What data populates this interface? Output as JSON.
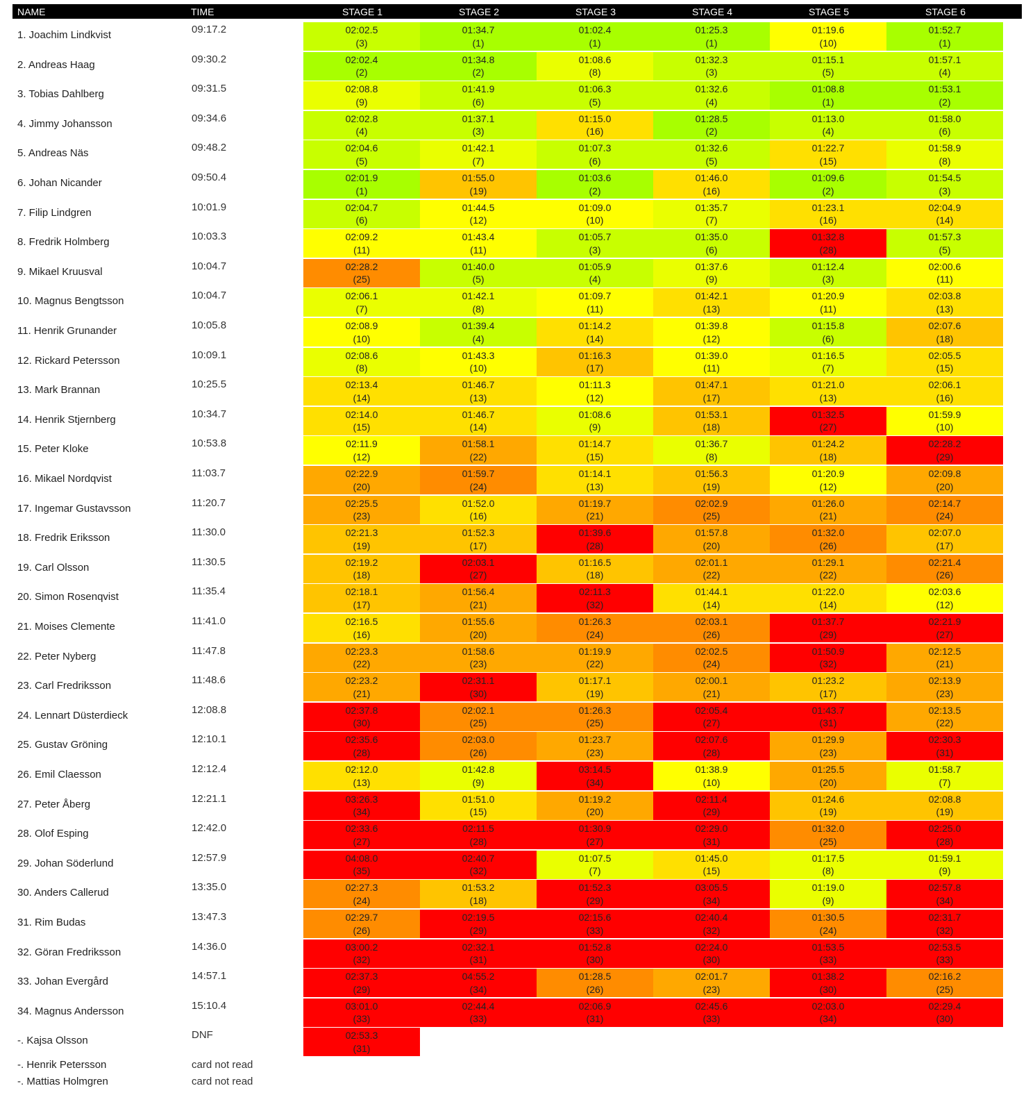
{
  "headers": {
    "name": "NAME",
    "time": "TIME",
    "stages": [
      "STAGE 1",
      "STAGE 2",
      "STAGE 3",
      "STAGE 4",
      "STAGE 5",
      "STAGE 6"
    ]
  },
  "rows": [
    {
      "name": "1. Joachim Lindkvist",
      "time": "09:17.2",
      "splits": [
        [
          "02:02.5",
          "(3)"
        ],
        [
          "01:34.7",
          "(1)"
        ],
        [
          "01:02.4",
          "(1)"
        ],
        [
          "01:25.3",
          "(1)"
        ],
        [
          "01:19.6",
          "(10)"
        ],
        [
          "01:52.7",
          "(1)"
        ]
      ]
    },
    {
      "name": "2. Andreas Haag",
      "time": "09:30.2",
      "splits": [
        [
          "02:02.4",
          "(2)"
        ],
        [
          "01:34.8",
          "(2)"
        ],
        [
          "01:08.6",
          "(8)"
        ],
        [
          "01:32.3",
          "(3)"
        ],
        [
          "01:15.1",
          "(5)"
        ],
        [
          "01:57.1",
          "(4)"
        ]
      ]
    },
    {
      "name": "3. Tobias Dahlberg",
      "time": "09:31.5",
      "splits": [
        [
          "02:08.8",
          "(9)"
        ],
        [
          "01:41.9",
          "(6)"
        ],
        [
          "01:06.3",
          "(5)"
        ],
        [
          "01:32.6",
          "(4)"
        ],
        [
          "01:08.8",
          "(1)"
        ],
        [
          "01:53.1",
          "(2)"
        ]
      ]
    },
    {
      "name": "4. Jimmy Johansson",
      "time": "09:34.6",
      "splits": [
        [
          "02:02.8",
          "(4)"
        ],
        [
          "01:37.1",
          "(3)"
        ],
        [
          "01:15.0",
          "(16)"
        ],
        [
          "01:28.5",
          "(2)"
        ],
        [
          "01:13.0",
          "(4)"
        ],
        [
          "01:58.0",
          "(6)"
        ]
      ]
    },
    {
      "name": "5. Andreas Näs",
      "time": "09:48.2",
      "splits": [
        [
          "02:04.6",
          "(5)"
        ],
        [
          "01:42.1",
          "(7)"
        ],
        [
          "01:07.3",
          "(6)"
        ],
        [
          "01:32.6",
          "(5)"
        ],
        [
          "01:22.7",
          "(15)"
        ],
        [
          "01:58.9",
          "(8)"
        ]
      ]
    },
    {
      "name": "6. Johan Nicander",
      "time": "09:50.4",
      "splits": [
        [
          "02:01.9",
          "(1)"
        ],
        [
          "01:55.0",
          "(19)"
        ],
        [
          "01:03.6",
          "(2)"
        ],
        [
          "01:46.0",
          "(16)"
        ],
        [
          "01:09.6",
          "(2)"
        ],
        [
          "01:54.5",
          "(3)"
        ]
      ]
    },
    {
      "name": "7. Filip Lindgren",
      "time": "10:01.9",
      "splits": [
        [
          "02:04.7",
          "(6)"
        ],
        [
          "01:44.5",
          "(12)"
        ],
        [
          "01:09.0",
          "(10)"
        ],
        [
          "01:35.7",
          "(7)"
        ],
        [
          "01:23.1",
          "(16)"
        ],
        [
          "02:04.9",
          "(14)"
        ]
      ]
    },
    {
      "name": "8. Fredrik Holmberg",
      "time": "10:03.3",
      "splits": [
        [
          "02:09.2",
          "(11)"
        ],
        [
          "01:43.4",
          "(11)"
        ],
        [
          "01:05.7",
          "(3)"
        ],
        [
          "01:35.0",
          "(6)"
        ],
        [
          "01:32.8",
          "(28)"
        ],
        [
          "01:57.3",
          "(5)"
        ]
      ]
    },
    {
      "name": "9. Mikael Kruusval",
      "time": "10:04.7",
      "splits": [
        [
          "02:28.2",
          "(25)"
        ],
        [
          "01:40.0",
          "(5)"
        ],
        [
          "01:05.9",
          "(4)"
        ],
        [
          "01:37.6",
          "(9)"
        ],
        [
          "01:12.4",
          "(3)"
        ],
        [
          "02:00.6",
          "(11)"
        ]
      ]
    },
    {
      "name": "10. Magnus Bengtsson",
      "time": "10:04.7",
      "splits": [
        [
          "02:06.1",
          "(7)"
        ],
        [
          "01:42.1",
          "(8)"
        ],
        [
          "01:09.7",
          "(11)"
        ],
        [
          "01:42.1",
          "(13)"
        ],
        [
          "01:20.9",
          "(11)"
        ],
        [
          "02:03.8",
          "(13)"
        ]
      ]
    },
    {
      "name": "11. Henrik Grunander",
      "time": "10:05.8",
      "splits": [
        [
          "02:08.9",
          "(10)"
        ],
        [
          "01:39.4",
          "(4)"
        ],
        [
          "01:14.2",
          "(14)"
        ],
        [
          "01:39.8",
          "(12)"
        ],
        [
          "01:15.8",
          "(6)"
        ],
        [
          "02:07.6",
          "(18)"
        ]
      ]
    },
    {
      "name": "12. Rickard Petersson",
      "time": "10:09.1",
      "splits": [
        [
          "02:08.6",
          "(8)"
        ],
        [
          "01:43.3",
          "(10)"
        ],
        [
          "01:16.3",
          "(17)"
        ],
        [
          "01:39.0",
          "(11)"
        ],
        [
          "01:16.5",
          "(7)"
        ],
        [
          "02:05.5",
          "(15)"
        ]
      ]
    },
    {
      "name": "13. Mark Brannan",
      "time": "10:25.5",
      "splits": [
        [
          "02:13.4",
          "(14)"
        ],
        [
          "01:46.7",
          "(13)"
        ],
        [
          "01:11.3",
          "(12)"
        ],
        [
          "01:47.1",
          "(17)"
        ],
        [
          "01:21.0",
          "(13)"
        ],
        [
          "02:06.1",
          "(16)"
        ]
      ]
    },
    {
      "name": "14. Henrik Stjernberg",
      "time": "10:34.7",
      "splits": [
        [
          "02:14.0",
          "(15)"
        ],
        [
          "01:46.7",
          "(14)"
        ],
        [
          "01:08.6",
          "(9)"
        ],
        [
          "01:53.1",
          "(18)"
        ],
        [
          "01:32.5",
          "(27)"
        ],
        [
          "01:59.9",
          "(10)"
        ]
      ]
    },
    {
      "name": "15. Peter Kloke",
      "time": "10:53.8",
      "splits": [
        [
          "02:11.9",
          "(12)"
        ],
        [
          "01:58.1",
          "(22)"
        ],
        [
          "01:14.7",
          "(15)"
        ],
        [
          "01:36.7",
          "(8)"
        ],
        [
          "01:24.2",
          "(18)"
        ],
        [
          "02:28.2",
          "(29)"
        ]
      ]
    },
    {
      "name": "16. Mikael Nordqvist",
      "time": "11:03.7",
      "splits": [
        [
          "02:22.9",
          "(20)"
        ],
        [
          "01:59.7",
          "(24)"
        ],
        [
          "01:14.1",
          "(13)"
        ],
        [
          "01:56.3",
          "(19)"
        ],
        [
          "01:20.9",
          "(12)"
        ],
        [
          "02:09.8",
          "(20)"
        ]
      ]
    },
    {
      "name": "17. Ingemar Gustavsson",
      "time": "11:20.7",
      "splits": [
        [
          "02:25.5",
          "(23)"
        ],
        [
          "01:52.0",
          "(16)"
        ],
        [
          "01:19.7",
          "(21)"
        ],
        [
          "02:02.9",
          "(25)"
        ],
        [
          "01:26.0",
          "(21)"
        ],
        [
          "02:14.7",
          "(24)"
        ]
      ]
    },
    {
      "name": "18. Fredrik Eriksson",
      "time": "11:30.0",
      "splits": [
        [
          "02:21.3",
          "(19)"
        ],
        [
          "01:52.3",
          "(17)"
        ],
        [
          "01:39.6",
          "(28)"
        ],
        [
          "01:57.8",
          "(20)"
        ],
        [
          "01:32.0",
          "(26)"
        ],
        [
          "02:07.0",
          "(17)"
        ]
      ]
    },
    {
      "name": "19. Carl Olsson",
      "time": "11:30.5",
      "splits": [
        [
          "02:19.2",
          "(18)"
        ],
        [
          "02:03.1",
          "(27)"
        ],
        [
          "01:16.5",
          "(18)"
        ],
        [
          "02:01.1",
          "(22)"
        ],
        [
          "01:29.1",
          "(22)"
        ],
        [
          "02:21.4",
          "(26)"
        ]
      ]
    },
    {
      "name": "20. Simon Rosenqvist",
      "time": "11:35.4",
      "splits": [
        [
          "02:18.1",
          "(17)"
        ],
        [
          "01:56.4",
          "(21)"
        ],
        [
          "02:11.3",
          "(32)"
        ],
        [
          "01:44.1",
          "(14)"
        ],
        [
          "01:22.0",
          "(14)"
        ],
        [
          "02:03.6",
          "(12)"
        ]
      ]
    },
    {
      "name": "21. Moises Clemente",
      "time": "11:41.0",
      "splits": [
        [
          "02:16.5",
          "(16)"
        ],
        [
          "01:55.6",
          "(20)"
        ],
        [
          "01:26.3",
          "(24)"
        ],
        [
          "02:03.1",
          "(26)"
        ],
        [
          "01:37.7",
          "(29)"
        ],
        [
          "02:21.9",
          "(27)"
        ]
      ]
    },
    {
      "name": "22. Peter Nyberg",
      "time": "11:47.8",
      "splits": [
        [
          "02:23.3",
          "(22)"
        ],
        [
          "01:58.6",
          "(23)"
        ],
        [
          "01:19.9",
          "(22)"
        ],
        [
          "02:02.5",
          "(24)"
        ],
        [
          "01:50.9",
          "(32)"
        ],
        [
          "02:12.5",
          "(21)"
        ]
      ]
    },
    {
      "name": "23. Carl Fredriksson",
      "time": "11:48.6",
      "splits": [
        [
          "02:23.2",
          "(21)"
        ],
        [
          "02:31.1",
          "(30)"
        ],
        [
          "01:17.1",
          "(19)"
        ],
        [
          "02:00.1",
          "(21)"
        ],
        [
          "01:23.2",
          "(17)"
        ],
        [
          "02:13.9",
          "(23)"
        ]
      ]
    },
    {
      "name": "24. Lennart Düsterdieck",
      "time": "12:08.8",
      "splits": [
        [
          "02:37.8",
          "(30)"
        ],
        [
          "02:02.1",
          "(25)"
        ],
        [
          "01:26.3",
          "(25)"
        ],
        [
          "02:05.4",
          "(27)"
        ],
        [
          "01:43.7",
          "(31)"
        ],
        [
          "02:13.5",
          "(22)"
        ]
      ]
    },
    {
      "name": "25. Gustav Gröning",
      "time": "12:10.1",
      "splits": [
        [
          "02:35.6",
          "(28)"
        ],
        [
          "02:03.0",
          "(26)"
        ],
        [
          "01:23.7",
          "(23)"
        ],
        [
          "02:07.6",
          "(28)"
        ],
        [
          "01:29.9",
          "(23)"
        ],
        [
          "02:30.3",
          "(31)"
        ]
      ]
    },
    {
      "name": "26. Emil Claesson",
      "time": "12:12.4",
      "splits": [
        [
          "02:12.0",
          "(13)"
        ],
        [
          "01:42.8",
          "(9)"
        ],
        [
          "03:14.5",
          "(34)"
        ],
        [
          "01:38.9",
          "(10)"
        ],
        [
          "01:25.5",
          "(20)"
        ],
        [
          "01:58.7",
          "(7)"
        ]
      ]
    },
    {
      "name": "27. Peter Åberg",
      "time": "12:21.1",
      "splits": [
        [
          "03:26.3",
          "(34)"
        ],
        [
          "01:51.0",
          "(15)"
        ],
        [
          "01:19.2",
          "(20)"
        ],
        [
          "02:11.4",
          "(29)"
        ],
        [
          "01:24.6",
          "(19)"
        ],
        [
          "02:08.8",
          "(19)"
        ]
      ]
    },
    {
      "name": "28. Olof Esping",
      "time": "12:42.0",
      "splits": [
        [
          "02:33.6",
          "(27)"
        ],
        [
          "02:11.5",
          "(28)"
        ],
        [
          "01:30.9",
          "(27)"
        ],
        [
          "02:29.0",
          "(31)"
        ],
        [
          "01:32.0",
          "(25)"
        ],
        [
          "02:25.0",
          "(28)"
        ]
      ]
    },
    {
      "name": "29. Johan Söderlund",
      "time": "12:57.9",
      "splits": [
        [
          "04:08.0",
          "(35)"
        ],
        [
          "02:40.7",
          "(32)"
        ],
        [
          "01:07.5",
          "(7)"
        ],
        [
          "01:45.0",
          "(15)"
        ],
        [
          "01:17.5",
          "(8)"
        ],
        [
          "01:59.1",
          "(9)"
        ]
      ]
    },
    {
      "name": "30. Anders Callerud",
      "time": "13:35.0",
      "splits": [
        [
          "02:27.3",
          "(24)"
        ],
        [
          "01:53.2",
          "(18)"
        ],
        [
          "01:52.3",
          "(29)"
        ],
        [
          "03:05.5",
          "(34)"
        ],
        [
          "01:19.0",
          "(9)"
        ],
        [
          "02:57.8",
          "(34)"
        ]
      ]
    },
    {
      "name": "31. Rim Budas",
      "time": "13:47.3",
      "splits": [
        [
          "02:29.7",
          "(26)"
        ],
        [
          "02:19.5",
          "(29)"
        ],
        [
          "02:15.6",
          "(33)"
        ],
        [
          "02:40.4",
          "(32)"
        ],
        [
          "01:30.5",
          "(24)"
        ],
        [
          "02:31.7",
          "(32)"
        ]
      ]
    },
    {
      "name": "32. Göran Fredriksson",
      "time": "14:36.0",
      "splits": [
        [
          "03:00.2",
          "(32)"
        ],
        [
          "02:32.1",
          "(31)"
        ],
        [
          "01:52.8",
          "(30)"
        ],
        [
          "02:24.0",
          "(30)"
        ],
        [
          "01:53.5",
          "(33)"
        ],
        [
          "02:53.5",
          "(33)"
        ]
      ]
    },
    {
      "name": "33. Johan Evergård",
      "time": "14:57.1",
      "splits": [
        [
          "02:37.3",
          "(29)"
        ],
        [
          "04:55.2",
          "(34)"
        ],
        [
          "01:28.5",
          "(26)"
        ],
        [
          "02:01.7",
          "(23)"
        ],
        [
          "01:38.2",
          "(30)"
        ],
        [
          "02:16.2",
          "(25)"
        ]
      ]
    },
    {
      "name": "34. Magnus Andersson",
      "time": "15:10.4",
      "splits": [
        [
          "03:01.0",
          "(33)"
        ],
        [
          "02:44.4",
          "(33)"
        ],
        [
          "02:06.9",
          "(31)"
        ],
        [
          "02:45.6",
          "(33)"
        ],
        [
          "02:03.0",
          "(34)"
        ],
        [
          "02:29.4",
          "(30)"
        ]
      ]
    },
    {
      "name": "-. Kajsa Olsson",
      "time": "DNF",
      "splits": [
        [
          "02:53.3",
          "(31)"
        ]
      ]
    }
  ],
  "extra_rows": [
    {
      "name": "-. Henrik Petersson",
      "time": "card not read"
    },
    {
      "name": "-. Mattias Holmgren",
      "time": "card not read"
    }
  ],
  "scale": {
    "max_rank": 35,
    "colors": [
      "#a8ff00",
      "#c8ff00",
      "#eaff00",
      "#ffff00",
      "#ffe000",
      "#ffc400",
      "#ffa800",
      "#ff8c00",
      "#ff6400",
      "#ff3c00",
      "#ff0000"
    ]
  }
}
